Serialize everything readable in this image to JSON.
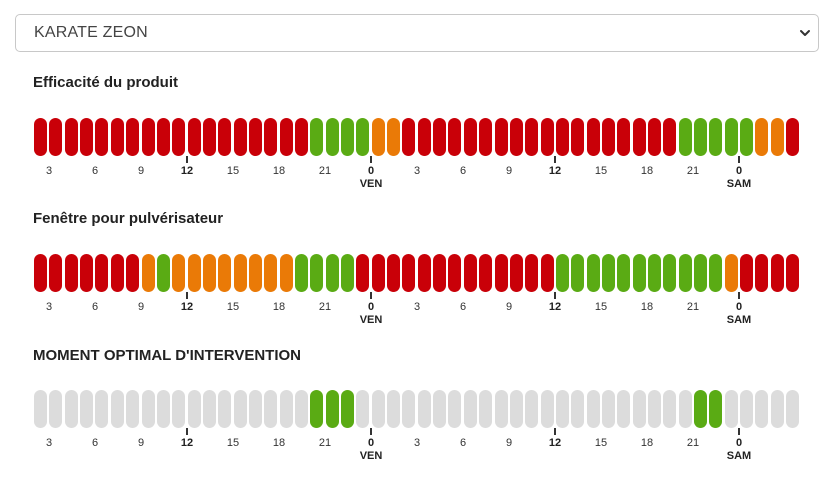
{
  "selector": {
    "value": "KARATE ZEON",
    "icon": "chevron-down-icon"
  },
  "colors": {
    "R": "#c90008",
    "G": "#5aab14",
    "O": "#ea7a07",
    "X": "#dcdcdc"
  },
  "timeline": {
    "hour_labels": [
      "3",
      "6",
      "9",
      "12",
      "15",
      "18",
      "21",
      "0",
      "3",
      "6",
      "9",
      "12",
      "15",
      "18",
      "21",
      "0"
    ],
    "major_labels": [
      "12",
      "0"
    ],
    "day_labels": [
      "VEN",
      "SAM"
    ]
  },
  "sections": [
    {
      "title": "Efficacité du produit",
      "cells": [
        "R",
        "R",
        "R",
        "R",
        "R",
        "R",
        "R",
        "R",
        "R",
        "R",
        "R",
        "R",
        "R",
        "R",
        "R",
        "R",
        "R",
        "R",
        "G",
        "G",
        "G",
        "G",
        "O",
        "O",
        "R",
        "R",
        "R",
        "R",
        "R",
        "R",
        "R",
        "R",
        "R",
        "R",
        "R",
        "R",
        "R",
        "R",
        "R",
        "R",
        "R",
        "R",
        "G",
        "G",
        "G",
        "G",
        "G",
        "O",
        "O",
        "R"
      ]
    },
    {
      "title": "Fenêtre pour pulvérisateur",
      "cells": [
        "R",
        "R",
        "R",
        "R",
        "R",
        "R",
        "R",
        "O",
        "G",
        "O",
        "O",
        "O",
        "O",
        "O",
        "O",
        "O",
        "O",
        "G",
        "G",
        "G",
        "G",
        "R",
        "R",
        "R",
        "R",
        "R",
        "R",
        "R",
        "R",
        "R",
        "R",
        "R",
        "R",
        "R",
        "G",
        "G",
        "G",
        "G",
        "G",
        "G",
        "G",
        "G",
        "G",
        "G",
        "G",
        "O",
        "R",
        "R",
        "R",
        "R"
      ]
    },
    {
      "title": "MOMENT OPTIMAL D'INTERVENTION",
      "cells": [
        "X",
        "X",
        "X",
        "X",
        "X",
        "X",
        "X",
        "X",
        "X",
        "X",
        "X",
        "X",
        "X",
        "X",
        "X",
        "X",
        "X",
        "X",
        "G",
        "G",
        "G",
        "X",
        "X",
        "X",
        "X",
        "X",
        "X",
        "X",
        "X",
        "X",
        "X",
        "X",
        "X",
        "X",
        "X",
        "X",
        "X",
        "X",
        "X",
        "X",
        "X",
        "X",
        "X",
        "G",
        "G",
        "X",
        "X",
        "X",
        "X",
        "X"
      ]
    }
  ]
}
